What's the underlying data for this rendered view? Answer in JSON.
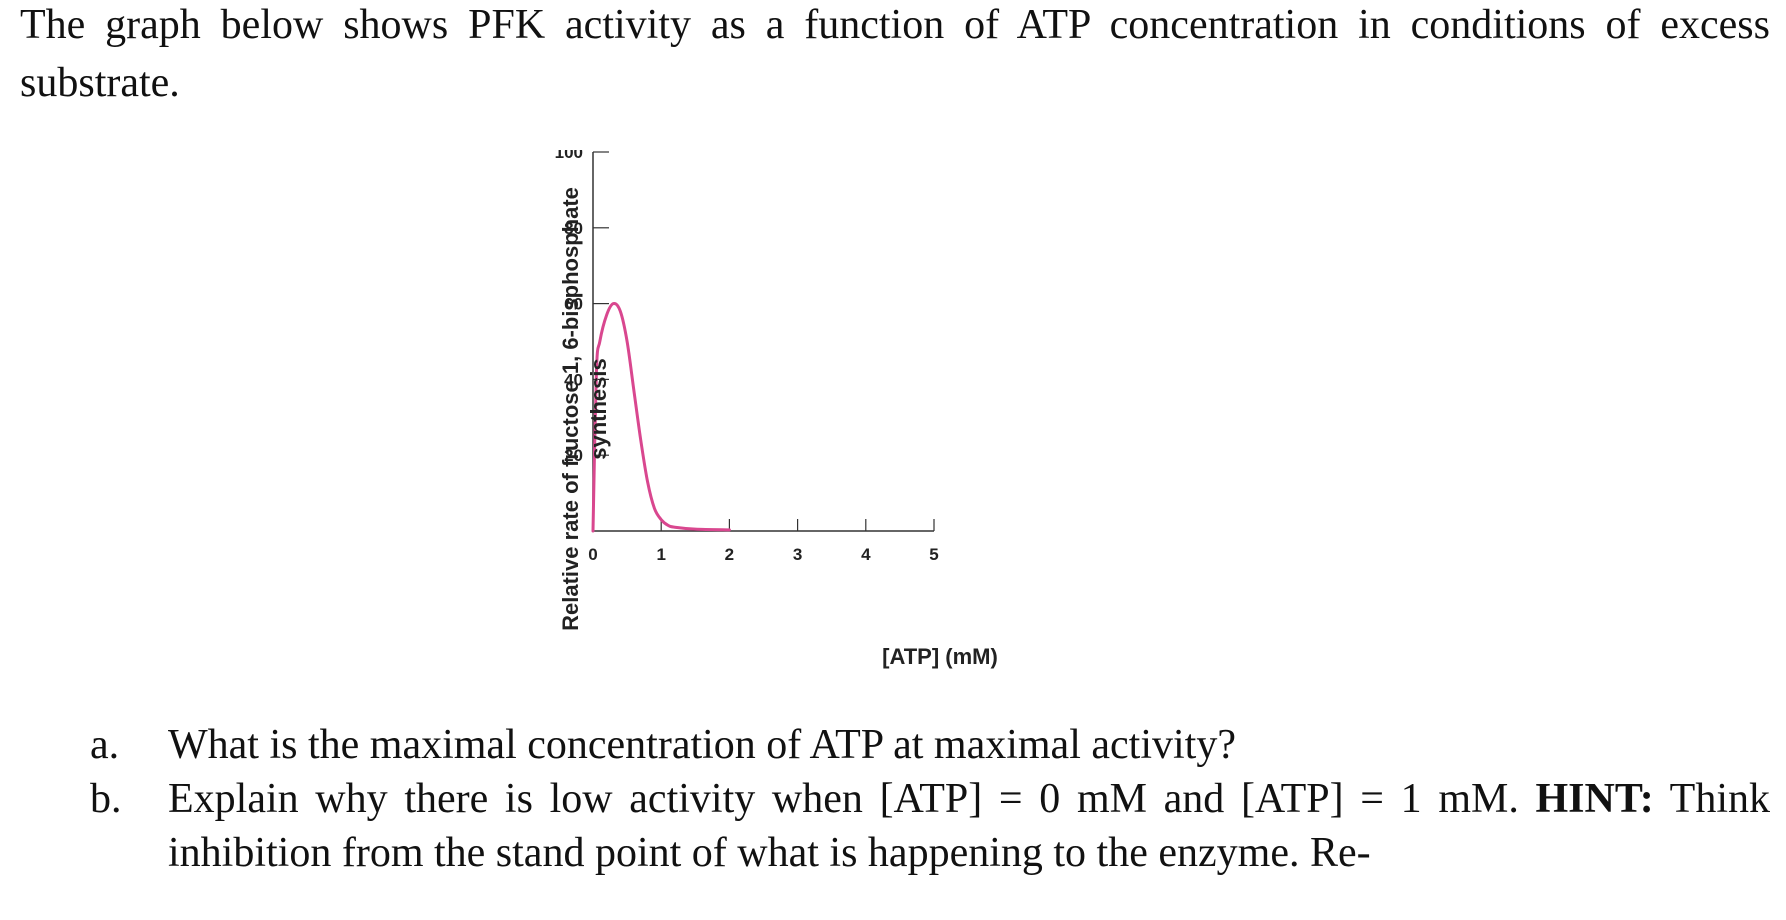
{
  "intro": "The graph below shows PFK activity as a function of ATP concentration in conditions of excess substrate.",
  "chart_data": {
    "type": "line",
    "title": "",
    "xlabel": "[ATP] (mM)",
    "ylabel": "Relative rate of fructose 1, 6-bisphosphate synthesis",
    "xlim": [
      0,
      5
    ],
    "ylim": [
      0,
      100
    ],
    "x_ticks": [
      "0",
      "1",
      "2",
      "3",
      "4",
      "5"
    ],
    "y_ticks": [
      "20",
      "40",
      "60",
      "80",
      "100"
    ],
    "grid": false,
    "color": "#d9478f",
    "series": [
      {
        "x": [
          0,
          0.05,
          0.1,
          0.2,
          0.3,
          0.4,
          0.5,
          0.6,
          0.7,
          0.8,
          0.9,
          1.0,
          1.1,
          1.2,
          1.5,
          2.0
        ],
        "y": [
          0,
          42,
          50,
          57,
          60,
          58,
          50,
          37,
          24,
          13,
          6,
          3,
          1.5,
          1,
          0.5,
          0.3
        ]
      }
    ]
  },
  "questions": [
    {
      "marker": "a.",
      "text": "What is the maximal concentration of ATP at maximal activity?",
      "hint_label": "",
      "hint_text": ""
    },
    {
      "marker": "b.",
      "text": "Explain why there is low activity when [ATP] = 0 mM and [ATP] = 1 mM. ",
      "hint_label": "HINT:",
      "hint_text": " Think inhibition from the stand point of what is happening to the enzyme. Re-"
    }
  ]
}
